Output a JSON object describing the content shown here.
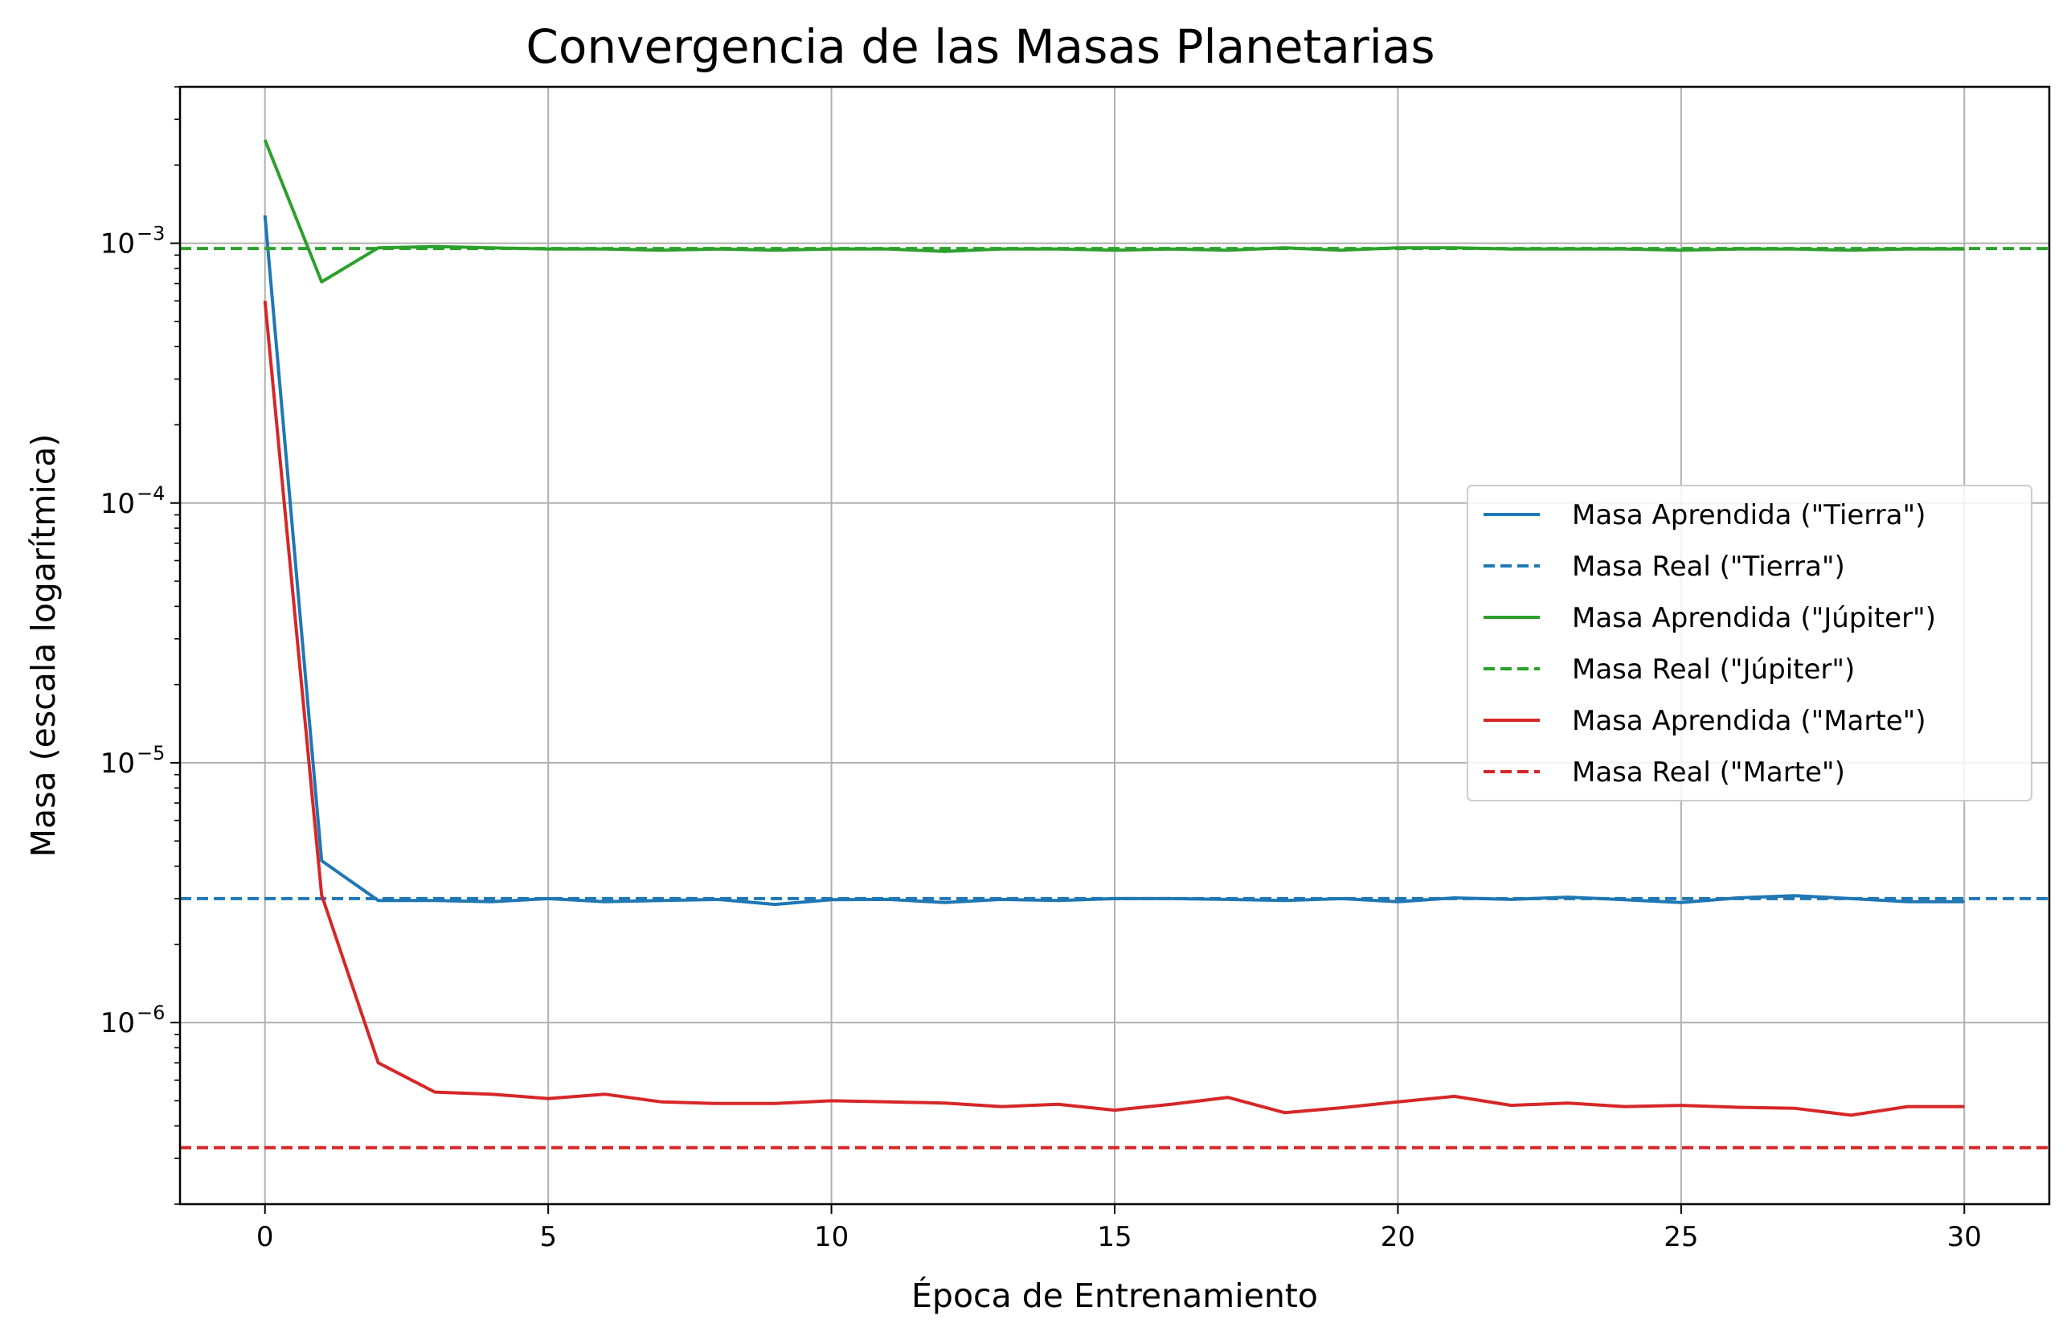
{
  "chart_data": {
    "type": "line",
    "title": "Convergencia de las Masas Planetarias",
    "xlabel": "Época de Entrenamiento",
    "ylabel": "Masa (escala logarítmica)",
    "xlim": [
      -1.5,
      31.5
    ],
    "ylim": [
      2e-07,
      0.004
    ],
    "yscale": "log",
    "grid": true,
    "legend_position": "center-right",
    "x_ticks": [
      0,
      5,
      10,
      15,
      20,
      25,
      30
    ],
    "y_ticks": [
      {
        "value": 1e-06,
        "base": "10",
        "exp": "−6"
      },
      {
        "value": 1e-05,
        "base": "10",
        "exp": "−5"
      },
      {
        "value": 0.0001,
        "base": "10",
        "exp": "−4"
      },
      {
        "value": 0.001,
        "base": "10",
        "exp": "−3"
      }
    ],
    "x": [
      0,
      1,
      2,
      3,
      4,
      5,
      6,
      7,
      8,
      9,
      10,
      11,
      12,
      13,
      14,
      15,
      16,
      17,
      18,
      19,
      20,
      21,
      22,
      23,
      24,
      25,
      26,
      27,
      28,
      29,
      30
    ],
    "series": [
      {
        "name": "Masa Aprendida (\"Tierra\")",
        "color": "#1f77b4",
        "style": "solid",
        "values": [
          0.00128,
          4.2e-06,
          2.95e-06,
          2.95e-06,
          2.92e-06,
          3e-06,
          2.92e-06,
          2.95e-06,
          2.98e-06,
          2.85e-06,
          2.97e-06,
          2.98e-06,
          2.9e-06,
          2.98e-06,
          2.95e-06,
          3e-06,
          3e-06,
          2.98e-06,
          2.95e-06,
          3e-06,
          2.92e-06,
          3.02e-06,
          2.98e-06,
          3.04e-06,
          2.97e-06,
          2.9e-06,
          3.02e-06,
          3.08e-06,
          3e-06,
          2.92e-06,
          2.92e-06
        ]
      },
      {
        "name": "Masa Real (\"Tierra\")",
        "color": "#1f77b4",
        "style": "dashed",
        "constant": 3e-06
      },
      {
        "name": "Masa Aprendida (\"Júpiter\")",
        "color": "#2ca02c",
        "style": "solid",
        "values": [
          0.0025,
          0.00071,
          0.00096,
          0.00097,
          0.00096,
          0.00095,
          0.00095,
          0.00094,
          0.00095,
          0.00094,
          0.00095,
          0.00095,
          0.00093,
          0.00095,
          0.00095,
          0.00094,
          0.00095,
          0.00094,
          0.00096,
          0.00094,
          0.00096,
          0.00096,
          0.00095,
          0.00095,
          0.00095,
          0.00094,
          0.00095,
          0.00095,
          0.00094,
          0.00095,
          0.00095
        ]
      },
      {
        "name": "Masa Real (\"Júpiter\")",
        "color": "#2ca02c",
        "style": "dashed",
        "constant": 0.000954
      },
      {
        "name": "Masa Aprendida (\"Marte\")",
        "color": "#d62728",
        "style": "solid",
        "values": [
          0.0006,
          3.1e-06,
          7e-07,
          5.4e-07,
          5.3e-07,
          5.1e-07,
          5.3e-07,
          4.95e-07,
          4.88e-07,
          4.88e-07,
          5e-07,
          4.95e-07,
          4.9e-07,
          4.75e-07,
          4.85e-07,
          4.6e-07,
          4.85e-07,
          5.15e-07,
          4.5e-07,
          4.7e-07,
          4.95e-07,
          5.2e-07,
          4.8e-07,
          4.9e-07,
          4.75e-07,
          4.8e-07,
          4.72e-07,
          4.68e-07,
          4.4e-07,
          4.75e-07,
          4.75e-07
        ]
      },
      {
        "name": "Masa Real (\"Marte\")",
        "color": "#d62728",
        "style": "dashed",
        "constant": 3.3e-07
      }
    ]
  }
}
